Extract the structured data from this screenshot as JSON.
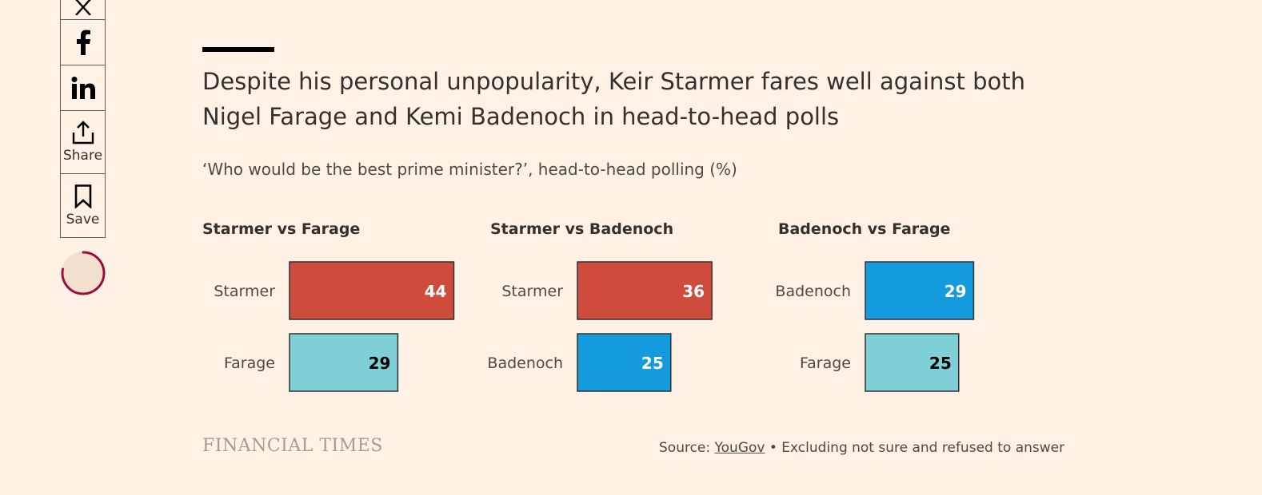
{
  "share": {
    "share_label": "Share",
    "save_label": "Save"
  },
  "colors": {
    "starmer": "#cf4c3d",
    "farage": "#7fcfd6",
    "badenoch": "#149bdd",
    "loader": "#990f3d"
  },
  "chart_data": {
    "type": "bar",
    "title": "Despite his personal unpopularity, Keir Starmer fares well against both Nigel Farage and Kemi Badenoch in head-to-head polls",
    "subtitle": "‘Who would be the best prime minister?’, head-to-head polling (%)",
    "xlim": [
      0,
      60
    ],
    "panels": [
      {
        "title": "Starmer vs Farage",
        "categories": [
          "Starmer",
          "Farage"
        ],
        "values": [
          44,
          29
        ],
        "colors": [
          "#cf4c3d",
          "#7fcfd6"
        ],
        "label_colors": [
          "#ffffff",
          "#000000"
        ]
      },
      {
        "title": "Starmer vs Badenoch",
        "categories": [
          "Starmer",
          "Badenoch"
        ],
        "values": [
          36,
          25
        ],
        "colors": [
          "#cf4c3d",
          "#149bdd"
        ],
        "label_colors": [
          "#ffffff",
          "#ffffff"
        ]
      },
      {
        "title": "Badenoch vs Farage",
        "categories": [
          "Badenoch",
          "Farage"
        ],
        "values": [
          29,
          25
        ],
        "colors": [
          "#149bdd",
          "#7fcfd6"
        ],
        "label_colors": [
          "#ffffff",
          "#000000"
        ]
      }
    ]
  },
  "footer": {
    "logo": "FINANCIAL TIMES",
    "source_prefix": "Source: ",
    "source_link": "YouGov",
    "source_note": " • Excluding not sure and refused to answer"
  }
}
